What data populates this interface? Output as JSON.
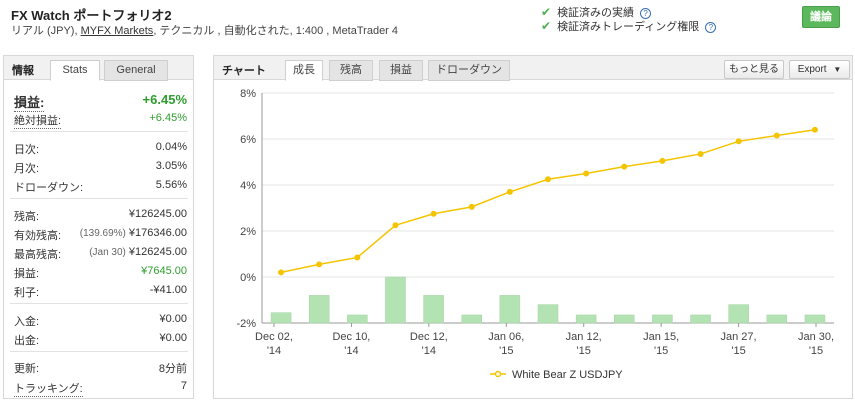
{
  "header": {
    "title": "FX Watch ポートフォリオ2",
    "subtitle_prefix": "リアル (JPY),",
    "broker_link": "MYFX Markets",
    "subtitle_suffix": ", テクニカル , 自動化された, 1:400 , MetaTrader 4",
    "verify_1": "検証済みの実績",
    "verify_2": "検証済みトレーディング権限",
    "discuss_button": "議論"
  },
  "left_panel": {
    "title": "情報",
    "tabs": [
      "Stats",
      "General"
    ],
    "stats": {
      "profit_label": "損益:",
      "profit_value": "+6.45%",
      "abs_profit_label": "絶対損益:",
      "abs_profit_value": "+6.45%",
      "daily_label": "日次:",
      "daily_value": "0.04%",
      "monthly_label": "月次:",
      "monthly_value": "3.05%",
      "drawdown_label": "ドローダウン:",
      "drawdown_value": "5.56%",
      "balance_label": "残高:",
      "balance_value": "¥126245.00",
      "equity_label": "有効残高:",
      "equity_note": "(139.69%)",
      "equity_value": "¥176346.00",
      "highest_label": "最高残高:",
      "highest_note": "(Jan 30)",
      "highest_value": "¥126245.00",
      "pl_label": "損益:",
      "pl_value": "¥7645.00",
      "interest_label": "利子:",
      "interest_value": "-¥41.00",
      "deposits_label": "入金:",
      "deposits_value": "¥0.00",
      "withdrawals_label": "出金:",
      "withdrawals_value": "¥0.00",
      "updated_label": "更新:",
      "updated_value": "8分前",
      "tracking_label": "トラッキング:",
      "tracking_value": "7"
    }
  },
  "chart_panel": {
    "title": "チャート",
    "tabs": [
      "成長",
      "残高",
      "損益",
      "ドローダウン"
    ],
    "more_button": "もっと見る",
    "export_button": "Export"
  },
  "colors": {
    "line": "#f5c400",
    "bar": "#b3e2b3",
    "bar_border": "#a6d4a6",
    "profit_green": "#2e9e2e",
    "check_green": "#4caf50",
    "button_green": "#5cb85c"
  },
  "chart_data": {
    "type": "bar+line",
    "y_ticks": [
      "8%",
      "6%",
      "4%",
      "2%",
      "0%",
      "-2%"
    ],
    "ylim": [
      -2,
      8
    ],
    "x_ticks": [
      [
        "Dec 02,",
        "'14"
      ],
      [
        "Dec 10,",
        "'14"
      ],
      [
        "Dec 12,",
        "'14"
      ],
      [
        "Jan 06,",
        "'15"
      ],
      [
        "Jan 12,",
        "'15"
      ],
      [
        "Jan 15,",
        "'15"
      ],
      [
        "Jan 27,",
        "'15"
      ],
      [
        "Jan 30,",
        "'15"
      ]
    ],
    "series": [
      {
        "name": "White Bear Z USDJPY",
        "type": "line",
        "values": [
          0.2,
          0.55,
          0.85,
          2.25,
          2.75,
          3.05,
          3.7,
          4.25,
          4.5,
          4.8,
          5.05,
          5.35,
          5.9,
          6.15,
          6.4
        ]
      },
      {
        "type": "bar",
        "values": [
          -1.55,
          -0.8,
          -1.65,
          0.0,
          -0.8,
          -1.65,
          -0.8,
          -1.2,
          -1.65,
          -1.65,
          -1.65,
          -1.65,
          -1.2,
          -1.65,
          -1.65
        ]
      }
    ],
    "legend_position": "bottom"
  }
}
